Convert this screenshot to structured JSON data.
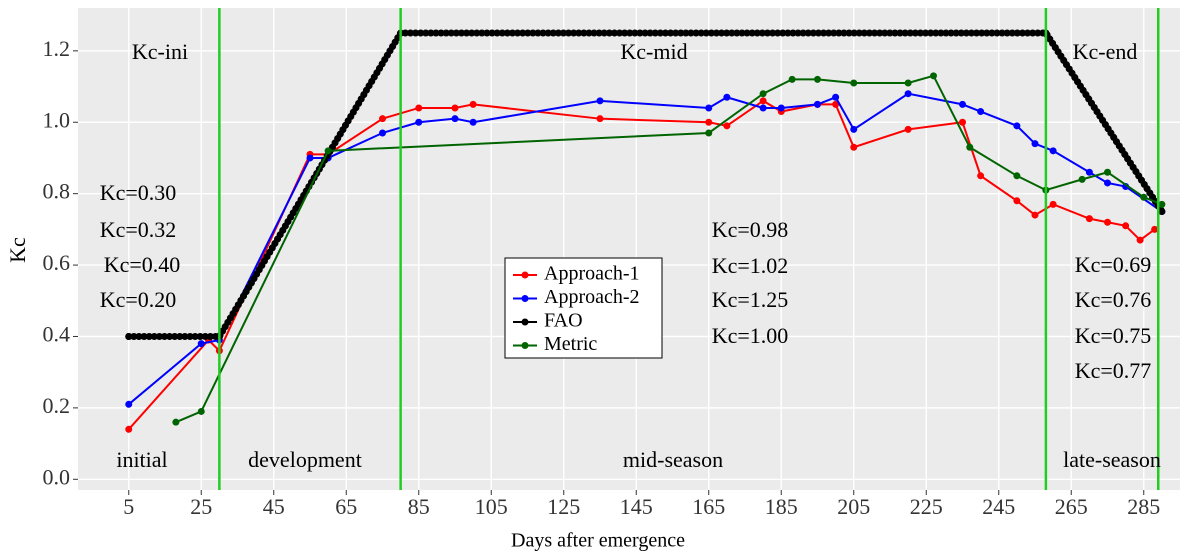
{
  "chart_data": {
    "type": "line",
    "xlabel": "Days after emergence",
    "ylabel": "Kc",
    "xlim": [
      -9,
      295
    ],
    "ylim": [
      -0.03,
      1.32
    ],
    "xticks": [
      5,
      25,
      45,
      65,
      85,
      105,
      125,
      145,
      165,
      185,
      205,
      225,
      245,
      265,
      285
    ],
    "yticks": [
      {
        "value": 0,
        "label": "0.0"
      },
      {
        "value": 0.2,
        "label": "0.2"
      },
      {
        "value": 0.4,
        "label": "0.4"
      },
      {
        "value": 0.6,
        "label": "0.6"
      },
      {
        "value": 0.8,
        "label": "0.8"
      },
      {
        "value": 1.0,
        "label": "1.0"
      },
      {
        "value": 1.2,
        "label": "1.2"
      }
    ],
    "grid": true,
    "phase_lines": {
      "color": "#22cc22",
      "x": [
        30,
        80,
        258,
        289
      ]
    },
    "series": [
      {
        "name": "Approach-1",
        "color": "#ff0000",
        "x": [
          5,
          27,
          30,
          55,
          60,
          75,
          85,
          95,
          100,
          135,
          165,
          170,
          180,
          185,
          195,
          200,
          205,
          220,
          235,
          240,
          250,
          255,
          260,
          270,
          275,
          280,
          284,
          288
        ],
        "values": [
          0.14,
          0.39,
          0.36,
          0.91,
          0.91,
          1.01,
          1.04,
          1.04,
          1.05,
          1.01,
          1.0,
          0.99,
          1.06,
          1.03,
          1.05,
          1.05,
          0.93,
          0.98,
          1.0,
          0.85,
          0.78,
          0.74,
          0.77,
          0.73,
          0.72,
          0.71,
          0.67,
          0.7
        ]
      },
      {
        "name": "Approach-2",
        "color": "#0000ff",
        "x": [
          5,
          25,
          30,
          55,
          60,
          75,
          85,
          95,
          100,
          135,
          165,
          170,
          180,
          185,
          195,
          200,
          205,
          220,
          235,
          240,
          250,
          255,
          260,
          270,
          275,
          280,
          290
        ],
        "values": [
          0.21,
          0.38,
          0.39,
          0.9,
          0.9,
          0.97,
          1.0,
          1.01,
          1.0,
          1.06,
          1.04,
          1.07,
          1.04,
          1.04,
          1.05,
          1.07,
          0.98,
          1.08,
          1.05,
          1.03,
          0.99,
          0.94,
          0.92,
          0.86,
          0.83,
          0.82,
          0.75
        ]
      },
      {
        "name": "FAO",
        "color": "#000000",
        "x": [
          5,
          30,
          80,
          258,
          290
        ],
        "values": [
          0.4,
          0.4,
          1.25,
          1.25,
          0.75
        ]
      },
      {
        "name": "Metric",
        "color": "#006400",
        "x": [
          18,
          25,
          60,
          165,
          180,
          188,
          195,
          205,
          220,
          227,
          237,
          250,
          258,
          268,
          275,
          285,
          290
        ],
        "values": [
          0.16,
          0.19,
          0.92,
          0.97,
          1.08,
          1.12,
          1.12,
          1.11,
          1.11,
          1.13,
          0.93,
          0.85,
          0.81,
          0.84,
          0.86,
          0.79,
          0.77
        ]
      }
    ],
    "annotations": [
      {
        "text": "Kc-ini",
        "color": "#000000"
      },
      {
        "text": "Kc-mid",
        "color": "#000000"
      },
      {
        "text": "Kc-end",
        "color": "#000000"
      },
      {
        "text": "Kc=0.30",
        "color": "#ff0000"
      },
      {
        "text": "Kc=0.32",
        "color": "#0000ff"
      },
      {
        "text": "Kc=0.40",
        "color": "#000000"
      },
      {
        "text": "Kc=0.20",
        "color": "#006400"
      },
      {
        "text": "Kc=0.98",
        "color": "#ff0000"
      },
      {
        "text": "Kc=1.02",
        "color": "#0000ff"
      },
      {
        "text": "Kc=1.25",
        "color": "#000000"
      },
      {
        "text": "Kc=1.00",
        "color": "#006400"
      },
      {
        "text": "Kc=0.69",
        "color": "#ff0000"
      },
      {
        "text": "Kc=0.76",
        "color": "#0000ff"
      },
      {
        "text": "Kc=0.75",
        "color": "#000000"
      },
      {
        "text": "Kc=0.77",
        "color": "#006400"
      },
      {
        "text": "initial",
        "color": "#000000"
      },
      {
        "text": "development",
        "color": "#000000"
      },
      {
        "text": "mid-season",
        "color": "#000000"
      },
      {
        "text": "late-season",
        "color": "#000000"
      }
    ]
  }
}
